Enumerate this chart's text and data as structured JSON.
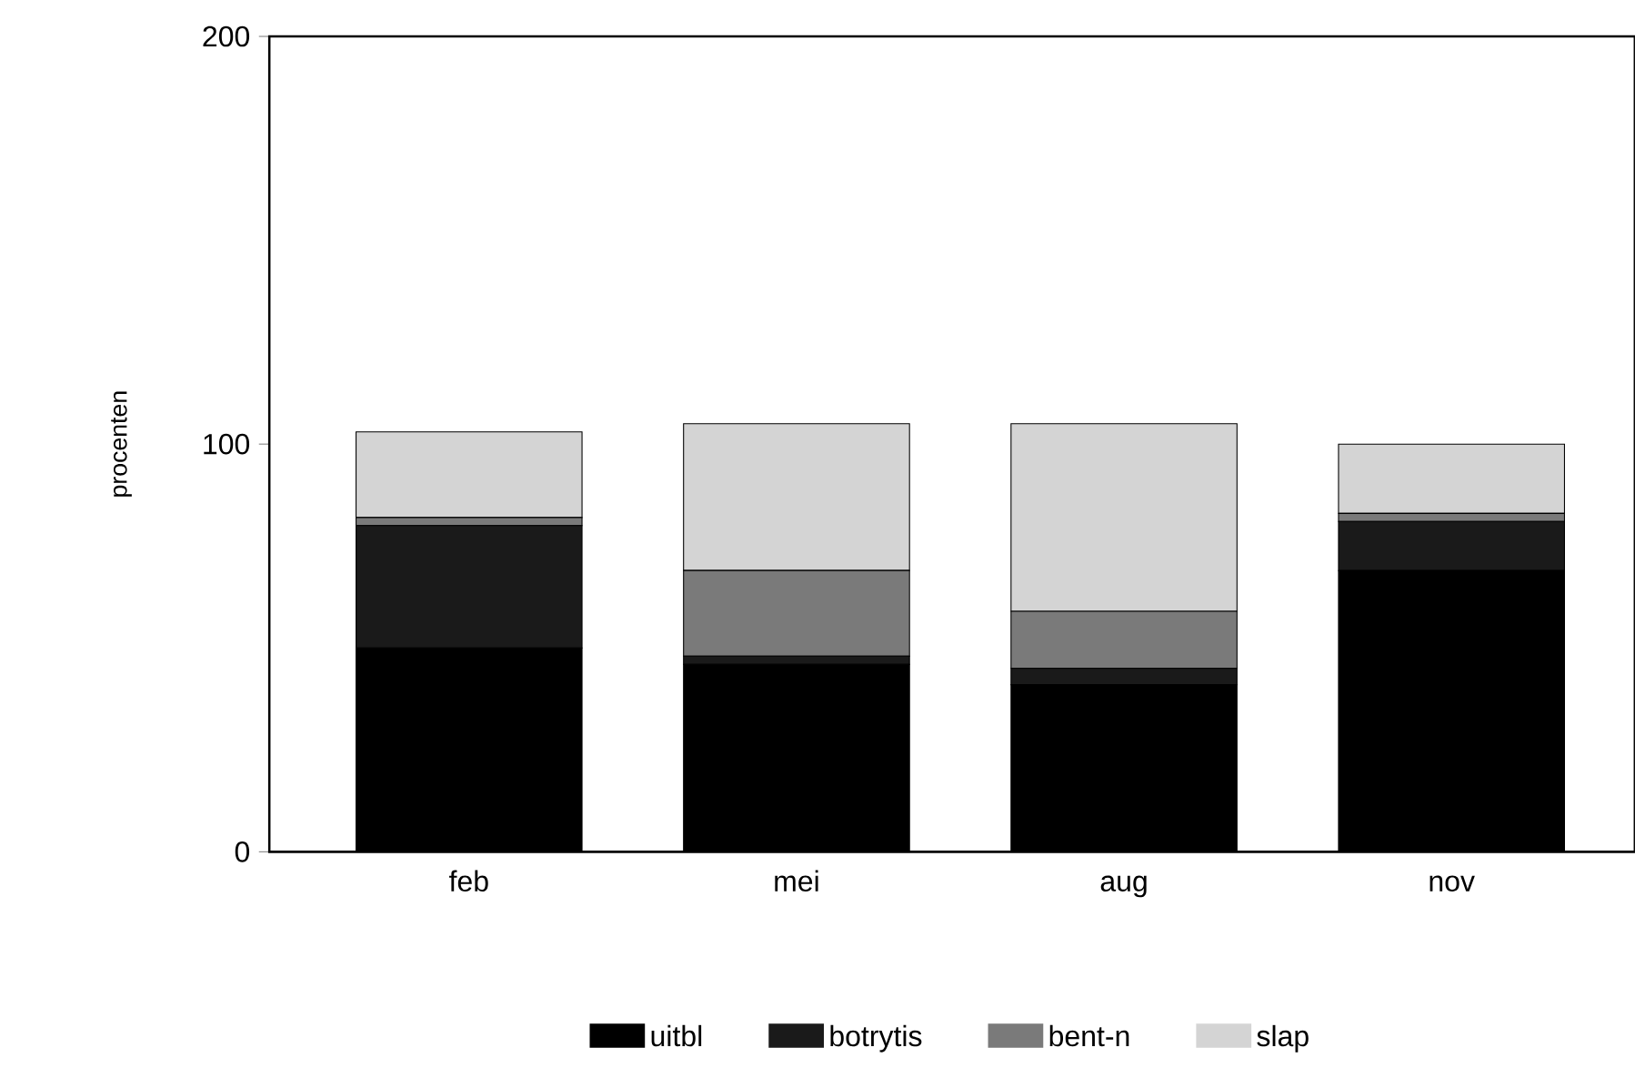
{
  "chart_data": {
    "type": "bar",
    "stacked": true,
    "ylabel": "procenten",
    "categories": [
      "feb",
      "mei",
      "aug",
      "nov"
    ],
    "series": [
      {
        "name": "uitbl",
        "color": "#000000",
        "values": [
          50,
          46,
          41,
          69
        ]
      },
      {
        "name": "botrytis",
        "color": "#1a1a1a",
        "values": [
          30,
          2,
          4,
          12
        ]
      },
      {
        "name": "bent-n",
        "color": "#7a7a7a",
        "values": [
          2,
          21,
          14,
          2
        ]
      },
      {
        "name": "slap",
        "color": "#d4d4d4",
        "values": [
          21,
          36,
          46,
          17
        ]
      }
    ],
    "ylim": [
      0,
      200
    ],
    "yticks": [
      0,
      100,
      200
    ],
    "legend": "bottom"
  }
}
